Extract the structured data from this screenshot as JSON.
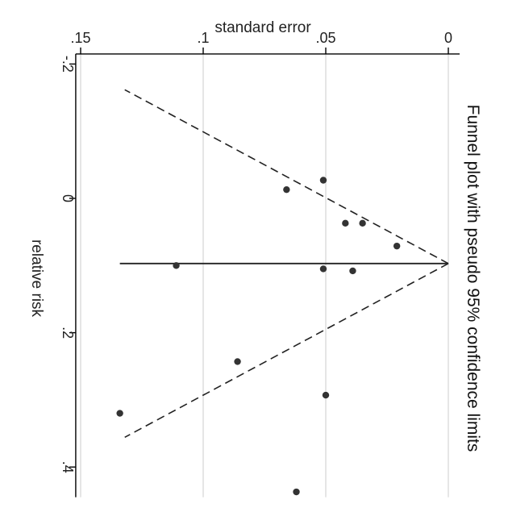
{
  "chart_data": {
    "type": "scatter",
    "title": "Funnel plot with pseudo 95% confidence limits",
    "xlabel": "standard error",
    "ylabel": "relative risk",
    "orientation": "rotated-90",
    "x_ticks": [
      {
        "value": 0.15,
        "label": ".15"
      },
      {
        "value": 0.1,
        "label": ".1"
      },
      {
        "value": 0.05,
        "label": ".05"
      },
      {
        "value": 0,
        "label": "0"
      }
    ],
    "y_ticks": [
      {
        "value": -0.2,
        "label": "-.2"
      },
      {
        "value": 0,
        "label": "0"
      },
      {
        "value": 0.2,
        "label": ".2"
      },
      {
        "value": 0.4,
        "label": ".4"
      }
    ],
    "xlim": [
      0,
      0.152
    ],
    "ylim": [
      -0.215,
      0.445
    ],
    "grid": true,
    "pooled_effect": 0.097,
    "pooled_line_se_range": [
      0,
      0.134
    ],
    "ci_limits_se_max": 0.132,
    "points": [
      {
        "se": 0.051,
        "rr": -0.027
      },
      {
        "se": 0.066,
        "rr": -0.013
      },
      {
        "se": 0.042,
        "rr": 0.037
      },
      {
        "se": 0.035,
        "rr": 0.037
      },
      {
        "se": 0.021,
        "rr": 0.071
      },
      {
        "se": 0.111,
        "rr": 0.1
      },
      {
        "se": 0.051,
        "rr": 0.105
      },
      {
        "se": 0.039,
        "rr": 0.108
      },
      {
        "se": 0.086,
        "rr": 0.243
      },
      {
        "se": 0.05,
        "rr": 0.293
      },
      {
        "se": 0.134,
        "rr": 0.32
      },
      {
        "se": 0.062,
        "rr": 0.437
      }
    ],
    "colors": {
      "points": "#333333",
      "lines": "#222222",
      "grid": "#d4d4d4",
      "frame": "#000000"
    }
  }
}
